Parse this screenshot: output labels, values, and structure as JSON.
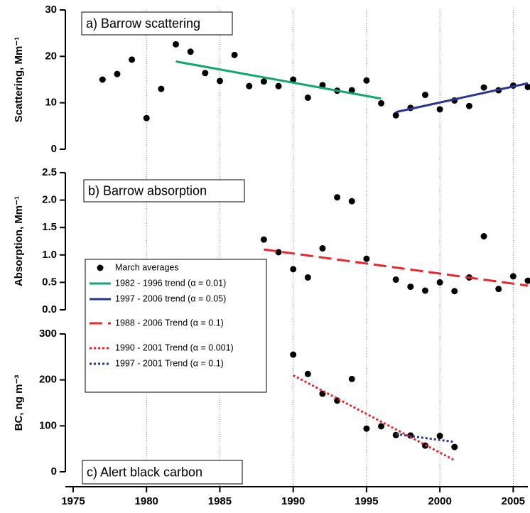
{
  "chart_data": [
    {
      "type": "scatter",
      "title": "a) Barrow scattering",
      "y_label": "Scattering, Mm⁻¹",
      "xlim": [
        1975,
        2006
      ],
      "ylim": [
        0,
        30
      ],
      "yticks": [
        0,
        10,
        20,
        30
      ],
      "series": [
        {
          "name": "March averages",
          "color": "#000000",
          "marker": "circle",
          "x": [
            1977,
            1978,
            1979,
            1980,
            1981,
            1982,
            1983,
            1984,
            1985,
            1986,
            1987,
            1988,
            1989,
            1990,
            1991,
            1992,
            1993,
            1994,
            1995,
            1996,
            1997,
            1998,
            1999,
            2000,
            2001,
            2002,
            2003,
            2004,
            2005,
            2006
          ],
          "values": [
            15,
            16.2,
            19.3,
            6.7,
            13,
            22.6,
            21,
            16.4,
            14.7,
            20.3,
            13.6,
            14.6,
            13.6,
            15,
            11.1,
            13.8,
            12.6,
            12.7,
            14.8,
            9.9,
            7.3,
            8.9,
            11.7,
            8.6,
            10.5,
            9.3,
            13.3,
            12.7,
            13.7,
            13.4
          ]
        },
        {
          "name": "1982 - 1996 trend (α = 0.01)",
          "color": "#12a66a",
          "dash": "solid",
          "x": [
            1982,
            1996
          ],
          "values": [
            18.9,
            10.9
          ]
        },
        {
          "name": "1997 - 2006 trend (α = 0.05)",
          "color": "#2a3590",
          "dash": "solid",
          "x": [
            1997,
            2006
          ],
          "values": [
            8.0,
            14.2
          ]
        }
      ]
    },
    {
      "type": "scatter",
      "title": "b) Barrow absorption",
      "y_label": "Absorption, Mm⁻¹",
      "xlim": [
        1975,
        2006
      ],
      "ylim": [
        0,
        2.5
      ],
      "yticks": [
        {
          "value": 0,
          "label": "0.0"
        },
        0.5,
        {
          "value": 1,
          "label": "1.0"
        },
        1.5,
        {
          "value": 2,
          "label": "2.0"
        },
        2.5
      ],
      "series": [
        {
          "color": "#000000",
          "marker": "circle",
          "x": [
            1988,
            1989,
            1990,
            1991,
            1992,
            1993,
            1994,
            1995,
            1997,
            1998,
            1999,
            2000,
            2001,
            2002,
            2003,
            2004,
            2005,
            2006
          ],
          "values": [
            1.28,
            1.05,
            0.74,
            0.59,
            1.12,
            2.05,
            1.98,
            0.93,
            0.55,
            0.42,
            0.35,
            0.5,
            0.34,
            0.59,
            1.34,
            0.38,
            0.61,
            0.53
          ]
        },
        {
          "name": "1988 - 2006 Trend (α = 0.1)",
          "color": "#e8262d",
          "dash": "dashed",
          "x": [
            1988,
            2006
          ],
          "values": [
            1.1,
            0.44
          ]
        }
      ]
    },
    {
      "type": "scatter",
      "title": "c) Alert black carbon",
      "y_label": "BC, ng m⁻³",
      "xlim": [
        1975,
        2006
      ],
      "ylim": [
        0,
        300
      ],
      "yticks": [
        0,
        100,
        200,
        300
      ],
      "xticks": [
        1975,
        1980,
        1985,
        1990,
        1995,
        2000,
        2005
      ],
      "series": [
        {
          "color": "#000000",
          "marker": "circle",
          "x": [
            1990,
            1991,
            1992,
            1993,
            1994,
            1995,
            1996,
            1997,
            1998,
            1999,
            2000,
            2001
          ],
          "values": [
            255,
            213,
            170,
            155,
            202,
            94,
            99,
            80,
            79,
            57,
            78,
            54
          ]
        },
        {
          "name": "1990 - 2001 Trend (α = 0.001)",
          "color": "#e8262d",
          "dash": "dotted",
          "x": [
            1990,
            2001
          ],
          "values": [
            210,
            25
          ]
        },
        {
          "name": "1997 - 2001 Trend (α = 0.1)",
          "color": "#2a3590",
          "dash": "dotted",
          "x": [
            1997,
            2001
          ],
          "values": [
            82,
            65
          ]
        }
      ]
    }
  ]
}
